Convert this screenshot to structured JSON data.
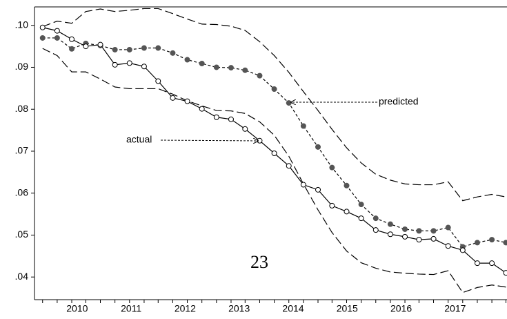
{
  "chart_data": {
    "type": "line",
    "x": [
      2009.86,
      2010.13,
      2010.4,
      2010.66,
      2010.93,
      2011.2,
      2011.47,
      2011.74,
      2012.0,
      2012.27,
      2012.54,
      2012.81,
      2013.08,
      2013.35,
      2013.61,
      2013.88,
      2014.15,
      2014.42,
      2014.69,
      2014.96,
      2015.22,
      2015.49,
      2015.76,
      2016.03,
      2016.3,
      2016.57,
      2016.83,
      2017.1,
      2017.37,
      2017.64,
      2017.91,
      2018.18,
      2018.44
    ],
    "series": [
      {
        "color": "#000000",
        "style": "longdash",
        "values": [
          0.0997,
          0.101,
          0.1005,
          0.1033,
          0.1039,
          0.1033,
          0.1036,
          0.104,
          0.104,
          0.1028,
          0.1015,
          0.1003,
          0.1002,
          0.0998,
          0.0988,
          0.0961,
          0.0928,
          0.0888,
          0.0842,
          0.0797,
          0.0752,
          0.0708,
          0.0672,
          0.0645,
          0.0631,
          0.0622,
          0.062,
          0.062,
          0.0627,
          0.0582,
          0.0591,
          0.0597,
          0.0591
        ]
      },
      {
        "color": "#000000",
        "style": "longdash",
        "values": [
          0.0945,
          0.0928,
          0.0889,
          0.0889,
          0.0872,
          0.0853,
          0.0849,
          0.0849,
          0.0849,
          0.0836,
          0.082,
          0.0808,
          0.0797,
          0.0796,
          0.079,
          0.077,
          0.0738,
          0.0688,
          0.0622,
          0.056,
          0.0506,
          0.0462,
          0.0434,
          0.0421,
          0.0412,
          0.0409,
          0.0407,
          0.0406,
          0.0415,
          0.0363,
          0.0375,
          0.0381,
          0.0376
        ]
      },
      {
        "color": "#000000",
        "style": "shortdash",
        "marker": "filled",
        "marker_color": "#555555",
        "values": [
          0.097,
          0.097,
          0.0944,
          0.0957,
          0.0952,
          0.0942,
          0.0942,
          0.0946,
          0.0946,
          0.0934,
          0.0918,
          0.0909,
          0.09,
          0.0899,
          0.0893,
          0.088,
          0.0848,
          0.0815,
          0.076,
          0.071,
          0.0661,
          0.0618,
          0.0573,
          0.054,
          0.0526,
          0.0514,
          0.051,
          0.051,
          0.0518,
          0.0472,
          0.0482,
          0.0489,
          0.0482
        ]
      },
      {
        "color": "#000000",
        "style": "solid",
        "marker": "open",
        "marker_color": "#ffffff",
        "values": [
          0.0995,
          0.0987,
          0.0967,
          0.095,
          0.0954,
          0.0906,
          0.091,
          0.0902,
          0.0867,
          0.0827,
          0.0819,
          0.0801,
          0.0781,
          0.0776,
          0.0753,
          0.0725,
          0.0695,
          0.0665,
          0.062,
          0.0608,
          0.057,
          0.0556,
          0.054,
          0.0512,
          0.0502,
          0.0496,
          0.0489,
          0.0491,
          0.0474,
          0.0464,
          0.0433,
          0.0433,
          0.041
        ]
      }
    ],
    "xlim": [
      2009.71,
      2018.46
    ],
    "ylim": [
      0.0346,
      0.1044
    ],
    "xticks": [
      {
        "value": 2010.5,
        "label": "2010"
      },
      {
        "value": 2011.5,
        "label": "2011"
      },
      {
        "value": 2012.5,
        "label": "2012"
      },
      {
        "value": 2013.5,
        "label": "2013"
      },
      {
        "value": 2014.5,
        "label": "2014"
      },
      {
        "value": 2015.5,
        "label": "2015"
      },
      {
        "value": 2016.5,
        "label": "2016"
      },
      {
        "value": 2017.5,
        "label": "2017"
      }
    ],
    "yticks": [
      {
        "value": 0.04,
        "label": ".04"
      },
      {
        "value": 0.05,
        "label": ".05"
      },
      {
        "value": 0.06,
        "label": ".06"
      },
      {
        "value": 0.07,
        "label": ".07"
      },
      {
        "value": 0.08,
        "label": ".08"
      },
      {
        "value": 0.09,
        "label": ".09"
      },
      {
        "value": 0.1,
        "label": ".10"
      }
    ],
    "annotations": [
      {
        "text": "predicted"
      },
      {
        "text": "actual"
      },
      {
        "text": "23"
      }
    ]
  }
}
